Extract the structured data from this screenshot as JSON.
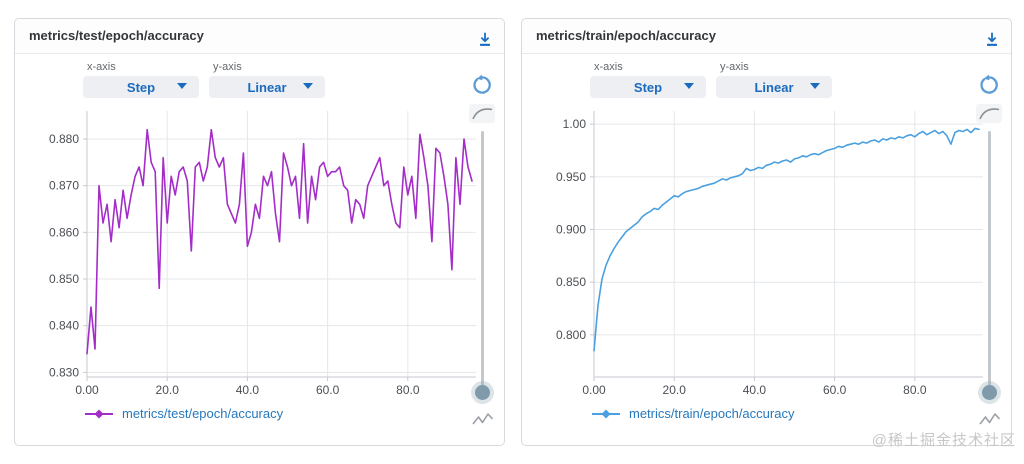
{
  "page": {
    "watermark": "@稀土掘金技术社区"
  },
  "icons": {
    "download": "download-arrow-with-bar",
    "reset": "rotate-counterclockwise-arrow",
    "smooth": "smooth-curve",
    "raw": "zigzag-line",
    "dropdown_caret": "triangle-down"
  },
  "colors": {
    "test_line": "#a42dc8",
    "train_line": "#4aa0e0",
    "dropdown_text": "#1a6bbf",
    "legend_text": "#2678bd",
    "grid": "#e4e7ea",
    "axis": "#c6cad0",
    "tick_text": "#4b4f54",
    "panel_border": "#d6dade"
  },
  "panels": [
    {
      "title": "metrics/test/epoch/accuracy",
      "controls": {
        "x_axis_label": "x-axis",
        "x_axis_value": "Step",
        "y_axis_label": "y-axis",
        "y_axis_value": "Linear"
      },
      "legend": {
        "label": "metrics/test/epoch/accuracy",
        "color": "#a42dc8"
      }
    },
    {
      "title": "metrics/train/epoch/accuracy",
      "controls": {
        "x_axis_label": "x-axis",
        "x_axis_value": "Step",
        "y_axis_label": "y-axis",
        "y_axis_value": "Linear"
      },
      "legend": {
        "label": "metrics/train/epoch/accuracy",
        "color": "#4aa0e0"
      }
    }
  ],
  "chart_data": [
    {
      "type": "line",
      "title": "metrics/test/epoch/accuracy",
      "xlabel": "",
      "ylabel": "",
      "grid": true,
      "legend_position": "bottom",
      "xlim": [
        0,
        97
      ],
      "ylim": [
        0.829,
        0.886
      ],
      "x_ticks": [
        0,
        20,
        40,
        60,
        80
      ],
      "x_tick_labels": [
        "0.00",
        "20.0",
        "40.0",
        "60.0",
        "80.0"
      ],
      "y_ticks": [
        0.88,
        0.87,
        0.86,
        0.85,
        0.84,
        0.83
      ],
      "y_tick_labels": [
        "0.880",
        "0.870",
        "0.860",
        "0.850",
        "0.840",
        "0.830"
      ],
      "series": [
        {
          "name": "metrics/test/epoch/accuracy",
          "color": "#a42dc8",
          "x": [
            0,
            1,
            2,
            3,
            4,
            5,
            6,
            7,
            8,
            9,
            10,
            11,
            12,
            13,
            14,
            15,
            16,
            17,
            18,
            19,
            20,
            21,
            22,
            23,
            24,
            25,
            26,
            27,
            28,
            29,
            30,
            31,
            32,
            33,
            34,
            35,
            36,
            37,
            38,
            39,
            40,
            41,
            42,
            43,
            44,
            45,
            46,
            47,
            48,
            49,
            50,
            51,
            52,
            53,
            54,
            55,
            56,
            57,
            58,
            59,
            60,
            61,
            62,
            63,
            64,
            65,
            66,
            67,
            68,
            69,
            70,
            71,
            72,
            73,
            74,
            75,
            76,
            77,
            78,
            79,
            80,
            81,
            82,
            83,
            84,
            85,
            86,
            87,
            88,
            89,
            90,
            91,
            92,
            93,
            94,
            95,
            96
          ],
          "y": [
            0.834,
            0.844,
            0.835,
            0.87,
            0.862,
            0.866,
            0.858,
            0.867,
            0.861,
            0.869,
            0.863,
            0.868,
            0.872,
            0.874,
            0.87,
            0.882,
            0.875,
            0.873,
            0.848,
            0.876,
            0.862,
            0.872,
            0.868,
            0.873,
            0.874,
            0.871,
            0.856,
            0.874,
            0.875,
            0.871,
            0.874,
            0.882,
            0.876,
            0.874,
            0.876,
            0.866,
            0.864,
            0.862,
            0.866,
            0.877,
            0.857,
            0.86,
            0.866,
            0.863,
            0.872,
            0.87,
            0.873,
            0.864,
            0.858,
            0.877,
            0.874,
            0.87,
            0.872,
            0.863,
            0.879,
            0.862,
            0.872,
            0.867,
            0.874,
            0.875,
            0.872,
            0.873,
            0.873,
            0.874,
            0.87,
            0.869,
            0.862,
            0.867,
            0.866,
            0.863,
            0.87,
            0.872,
            0.874,
            0.876,
            0.87,
            0.871,
            0.866,
            0.862,
            0.861,
            0.874,
            0.868,
            0.872,
            0.863,
            0.881,
            0.876,
            0.87,
            0.858,
            0.878,
            0.877,
            0.872,
            0.866,
            0.852,
            0.876,
            0.866,
            0.88,
            0.874,
            0.871
          ]
        }
      ]
    },
    {
      "type": "line",
      "title": "metrics/train/epoch/accuracy",
      "xlabel": "",
      "ylabel": "",
      "grid": true,
      "legend_position": "bottom",
      "xlim": [
        0,
        97
      ],
      "ylim": [
        0.76,
        1.0125
      ],
      "x_ticks": [
        0,
        20,
        40,
        60,
        80
      ],
      "x_tick_labels": [
        "0.00",
        "20.0",
        "40.0",
        "60.0",
        "80.0"
      ],
      "y_ticks": [
        1.0,
        0.95,
        0.9,
        0.85,
        0.8
      ],
      "y_tick_labels": [
        "1.00",
        "0.950",
        "0.900",
        "0.850",
        "0.800"
      ],
      "series": [
        {
          "name": "metrics/train/epoch/accuracy",
          "color": "#4aa0e0",
          "x": [
            0,
            1,
            2,
            3,
            4,
            5,
            6,
            7,
            8,
            9,
            10,
            11,
            12,
            13,
            14,
            15,
            16,
            17,
            18,
            19,
            20,
            21,
            22,
            23,
            24,
            25,
            26,
            27,
            28,
            29,
            30,
            31,
            32,
            33,
            34,
            35,
            36,
            37,
            38,
            39,
            40,
            41,
            42,
            43,
            44,
            45,
            46,
            47,
            48,
            49,
            50,
            51,
            52,
            53,
            54,
            55,
            56,
            57,
            58,
            59,
            60,
            61,
            62,
            63,
            64,
            65,
            66,
            67,
            68,
            69,
            70,
            71,
            72,
            73,
            74,
            75,
            76,
            77,
            78,
            79,
            80,
            81,
            82,
            83,
            84,
            85,
            86,
            87,
            88,
            89,
            90,
            91,
            92,
            93,
            94,
            95,
            96
          ],
          "y": [
            0.785,
            0.828,
            0.853,
            0.866,
            0.875,
            0.882,
            0.888,
            0.893,
            0.898,
            0.901,
            0.904,
            0.907,
            0.912,
            0.915,
            0.917,
            0.92,
            0.919,
            0.923,
            0.926,
            0.929,
            0.932,
            0.931,
            0.934,
            0.936,
            0.937,
            0.938,
            0.939,
            0.941,
            0.942,
            0.943,
            0.944,
            0.946,
            0.948,
            0.947,
            0.949,
            0.95,
            0.951,
            0.953,
            0.958,
            0.956,
            0.957,
            0.959,
            0.958,
            0.961,
            0.962,
            0.964,
            0.963,
            0.965,
            0.966,
            0.964,
            0.967,
            0.968,
            0.97,
            0.969,
            0.971,
            0.972,
            0.971,
            0.973,
            0.975,
            0.976,
            0.977,
            0.979,
            0.978,
            0.98,
            0.981,
            0.982,
            0.981,
            0.983,
            0.982,
            0.984,
            0.985,
            0.983,
            0.986,
            0.985,
            0.987,
            0.986,
            0.988,
            0.987,
            0.989,
            0.99,
            0.988,
            0.991,
            0.993,
            0.99,
            0.992,
            0.994,
            0.991,
            0.993,
            0.989,
            0.981,
            0.992,
            0.994,
            0.993,
            0.995,
            0.992,
            0.996,
            0.995
          ]
        }
      ]
    }
  ]
}
